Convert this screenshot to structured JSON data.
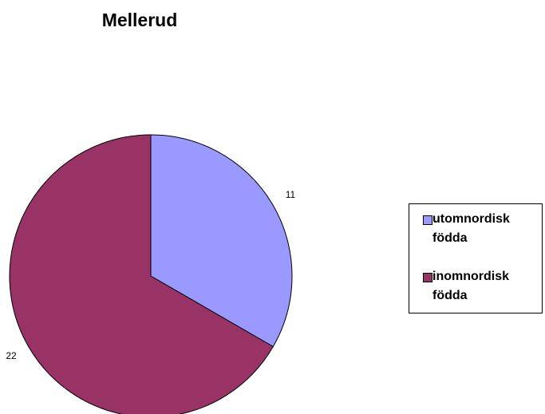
{
  "chart_data": {
    "type": "pie",
    "title": "Mellerud",
    "categories": [
      "utomnordisk födda",
      "inomnordisk födda"
    ],
    "values": [
      11,
      22
    ],
    "colors": [
      "#9999ff",
      "#993366"
    ],
    "legend": "right"
  }
}
